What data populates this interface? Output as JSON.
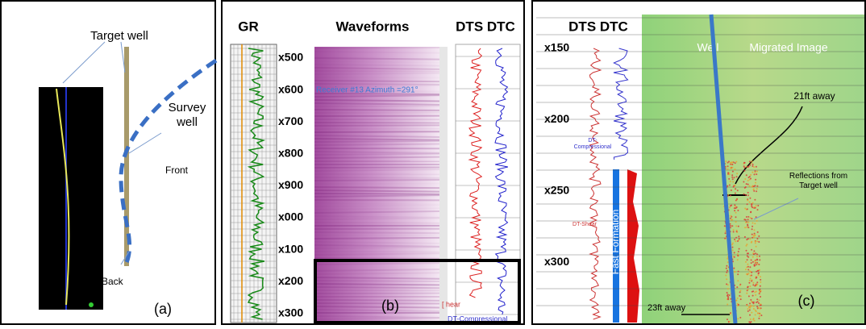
{
  "panel_a": {
    "target_well": "Target well",
    "survey_well": "Survey\nwell",
    "front": "Front",
    "back": "Back",
    "label": "(a)"
  },
  "panel_b": {
    "gr": "GR",
    "waveforms": "Waveforms",
    "dts_dtc": "DTS DTC",
    "depths": [
      "x500",
      "x600",
      "x700",
      "x800",
      "x900",
      "x000",
      "x100",
      "x200",
      "x300"
    ],
    "receiver": "Receiver #13 Azimuth =291°",
    "shear": "[ hear",
    "compressional": "DT-Compressional",
    "label": "(b)"
  },
  "panel_c": {
    "dts_dtc": "DTS DTC",
    "depths": [
      "x150",
      "x200",
      "x250",
      "x300"
    ],
    "well": "Well",
    "migrated_image": "Migrated Image",
    "away_21": "21ft away",
    "reflections": "Reflections from\nTarget well",
    "compressional": "DT-\nCompressional",
    "shear": "DT-Shear",
    "fast_formation": "Fast Formation",
    "away_23": "23ft away",
    "label": "(c)"
  }
}
